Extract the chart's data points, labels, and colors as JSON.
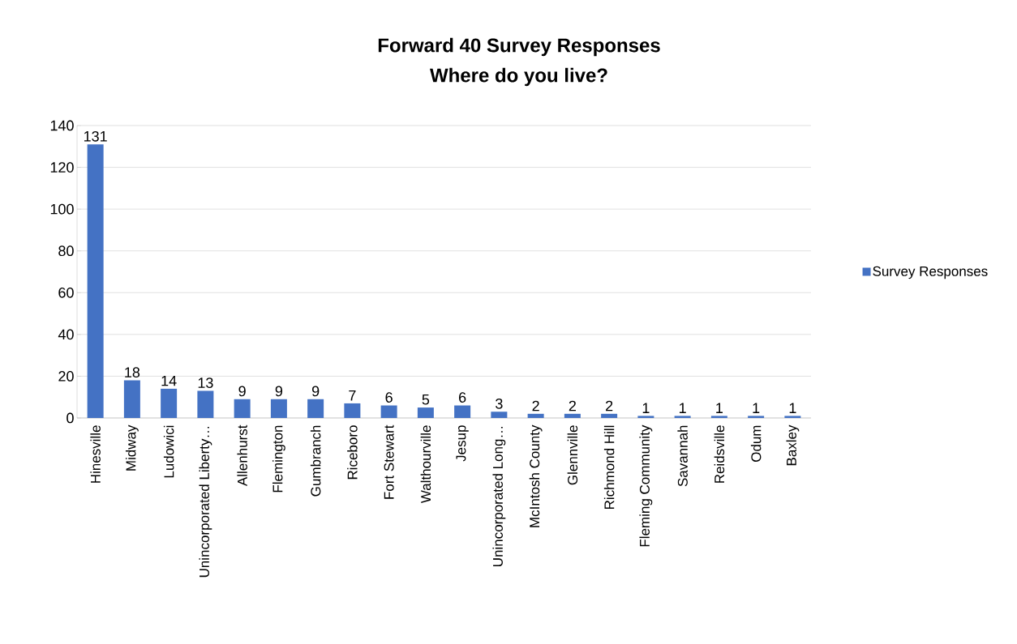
{
  "chart_data": {
    "type": "bar",
    "title": "Forward 40 Survey Responses",
    "subtitle": "Where do you live?",
    "categories": [
      "Hinesville",
      "Midway",
      "Ludowici",
      "Unincorporated Liberty…",
      "Allenhurst",
      "Flemington",
      "Gumbranch",
      "Riceboro",
      "Fort Stewart",
      "Walthourville",
      "Jesup",
      "Unincorporated Long…",
      "McIntosh County",
      "Glennville",
      "Richmond Hill",
      "Fleming Community",
      "Savannah",
      "Reidsville",
      "Odum",
      "Baxley"
    ],
    "series": [
      {
        "name": "Survey Responses",
        "color": "#4472c4",
        "values": [
          131,
          18,
          14,
          13,
          9,
          9,
          9,
          7,
          6,
          5,
          6,
          3,
          2,
          2,
          2,
          1,
          1,
          1,
          1,
          1
        ]
      }
    ],
    "ylim": [
      0,
      140
    ],
    "yticks": [
      0,
      20,
      40,
      60,
      80,
      100,
      120,
      140
    ],
    "grid": "y",
    "legend": "right",
    "data_labels": true
  }
}
